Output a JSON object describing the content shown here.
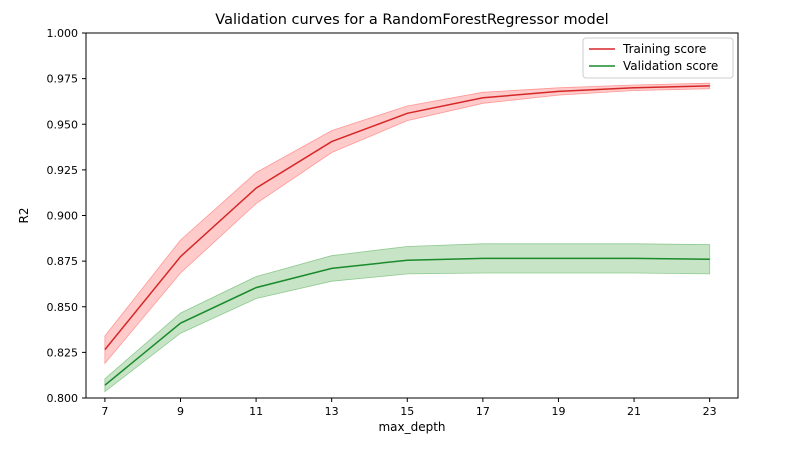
{
  "chart_data": {
    "type": "line",
    "title": "Validation curves for a RandomForestRegressor model",
    "xlabel": "max_depth",
    "ylabel": "R2",
    "xlim": [
      6.5,
      23.75
    ],
    "ylim": [
      0.8,
      1.0
    ],
    "x": [
      7,
      9,
      11,
      13,
      15,
      17,
      19,
      21,
      23
    ],
    "xticks": [
      "7",
      "9",
      "11",
      "13",
      "15",
      "17",
      "19",
      "21",
      "23"
    ],
    "yticks": [
      "0.800",
      "0.825",
      "0.850",
      "0.875",
      "0.900",
      "0.925",
      "0.950",
      "0.975",
      "1.000"
    ],
    "legend_position": "top-right",
    "grid": false,
    "series": [
      {
        "name": "Training score",
        "color": "#d62728",
        "band_color": "#ff9896",
        "values": [
          0.8265,
          0.8775,
          0.915,
          0.9405,
          0.956,
          0.9645,
          0.968,
          0.97,
          0.971
        ],
        "lower": [
          0.819,
          0.8685,
          0.9065,
          0.9345,
          0.952,
          0.9615,
          0.966,
          0.9685,
          0.9695
        ],
        "upper": [
          0.834,
          0.8865,
          0.9235,
          0.9465,
          0.96,
          0.9675,
          0.97,
          0.9715,
          0.9725
        ]
      },
      {
        "name": "Validation score",
        "color": "#1a8a2a",
        "band_color": "#8fca8f",
        "values": [
          0.807,
          0.841,
          0.8605,
          0.871,
          0.8755,
          0.8765,
          0.8765,
          0.8765,
          0.876
        ],
        "lower": [
          0.8035,
          0.8355,
          0.8545,
          0.864,
          0.868,
          0.8685,
          0.8685,
          0.8685,
          0.868
        ],
        "upper": [
          0.8105,
          0.8465,
          0.8665,
          0.878,
          0.883,
          0.8845,
          0.8845,
          0.8845,
          0.884
        ]
      }
    ]
  }
}
